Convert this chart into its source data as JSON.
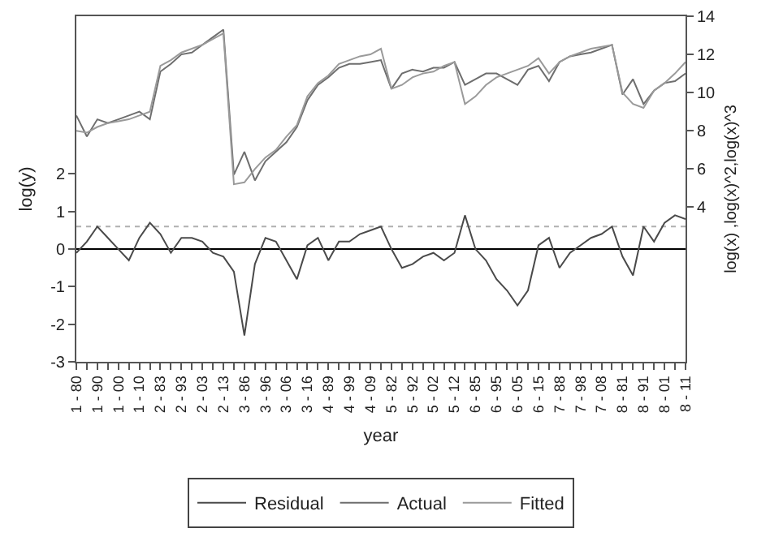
{
  "chart_data": {
    "type": "line",
    "xlabel": "year",
    "ylabel": "log(y)",
    "y2label": "log(x) ,log(x)^2,log(x)^3",
    "categories": [
      "1 - 80",
      null,
      "1 - 90",
      null,
      "1 - 00",
      null,
      "1 - 10",
      null,
      "2 - 83",
      null,
      "2 - 93",
      null,
      "2 - 03",
      null,
      "2 - 13",
      null,
      "3 - 86",
      null,
      "3 - 96",
      null,
      "3 - 06",
      null,
      "3 - 16",
      null,
      "4 - 89",
      null,
      "4 - 99",
      null,
      "4 - 09",
      null,
      "5 - 82",
      null,
      "5 - 92",
      null,
      "5 - 02",
      null,
      "5 - 12",
      null,
      "6 - 85",
      null,
      "6 - 95",
      null,
      "6 - 05",
      null,
      "6 - 15",
      null,
      "7 - 88",
      null,
      "7 - 98",
      null,
      "7 - 08",
      null,
      "8 - 81",
      null,
      "8 - 91",
      null,
      "8 - 01",
      null,
      "8 - 11"
    ],
    "ylim": [
      -3,
      6.2
    ],
    "yticks": [
      -3,
      -2,
      -1,
      0,
      1,
      2
    ],
    "y2lim": [
      -4.1,
      14
    ],
    "y2ticks": [
      4,
      6,
      8,
      10,
      12,
      14
    ],
    "grid": false,
    "legend": "bottom",
    "marker": "none",
    "line_style": "solid",
    "ref_lines": [
      {
        "axis": "y",
        "value": 0,
        "color": "#000000",
        "line_style": "solid"
      },
      {
        "axis": "y",
        "value": 0.6,
        "color": "#b0b0b0",
        "line_style": "dotted"
      }
    ],
    "series": [
      {
        "name": "Residual",
        "color": "#4a4a4a",
        "values": [
          -0.1,
          0.2,
          0.6,
          0.3,
          0.0,
          -0.3,
          0.3,
          0.7,
          0.4,
          -0.1,
          0.3,
          0.3,
          0.2,
          -0.1,
          -0.2,
          -0.6,
          -2.3,
          -0.4,
          0.3,
          0.2,
          -0.3,
          -0.8,
          0.1,
          0.3,
          -0.3,
          0.2,
          0.2,
          0.4,
          0.5,
          0.6,
          0.0,
          -0.5,
          -0.4,
          -0.2,
          -0.1,
          -0.3,
          -0.1,
          0.9,
          0.0,
          -0.3,
          -0.8,
          -1.1,
          -1.5,
          -1.1,
          0.1,
          0.3,
          -0.5,
          -0.1,
          0.1,
          0.3,
          0.4,
          0.6,
          -0.2,
          -0.7,
          0.6,
          0.2,
          0.7,
          0.9,
          0.8
        ]
      },
      {
        "name": "Actual",
        "color": "#6e6e6e",
        "axis": "y2",
        "values": [
          8.8,
          7.7,
          8.6,
          8.4,
          8.6,
          8.8,
          9.0,
          8.6,
          11.1,
          11.5,
          12.0,
          12.1,
          12.5,
          12.9,
          13.3,
          5.7,
          6.9,
          5.4,
          6.4,
          6.9,
          7.4,
          8.2,
          9.6,
          10.4,
          10.8,
          11.3,
          11.5,
          11.5,
          11.6,
          11.7,
          10.2,
          11.0,
          11.2,
          11.1,
          11.3,
          11.3,
          11.6,
          10.4,
          10.7,
          11.0,
          11.0,
          10.7,
          10.4,
          11.2,
          11.4,
          10.6,
          11.6,
          11.9,
          12.0,
          12.1,
          12.3,
          12.5,
          9.9,
          10.7,
          9.4,
          10.1,
          10.5,
          10.6,
          11.0
        ]
      },
      {
        "name": "Fitted",
        "color": "#9a9a9a",
        "axis": "y2",
        "values": [
          8.0,
          7.9,
          8.2,
          8.4,
          8.5,
          8.6,
          8.8,
          9.0,
          11.4,
          11.7,
          12.1,
          12.3,
          12.5,
          12.8,
          13.1,
          5.2,
          5.3,
          6.0,
          6.6,
          7.0,
          7.7,
          8.3,
          9.8,
          10.5,
          10.9,
          11.5,
          11.7,
          11.9,
          12.0,
          12.3,
          10.2,
          10.4,
          10.8,
          11.0,
          11.1,
          11.4,
          11.6,
          9.4,
          9.8,
          10.4,
          10.8,
          11.0,
          11.2,
          11.4,
          11.8,
          11.0,
          11.6,
          11.9,
          12.1,
          12.3,
          12.4,
          12.5,
          10.0,
          9.4,
          9.2,
          10.1,
          10.5,
          11.0,
          11.6
        ]
      }
    ]
  }
}
